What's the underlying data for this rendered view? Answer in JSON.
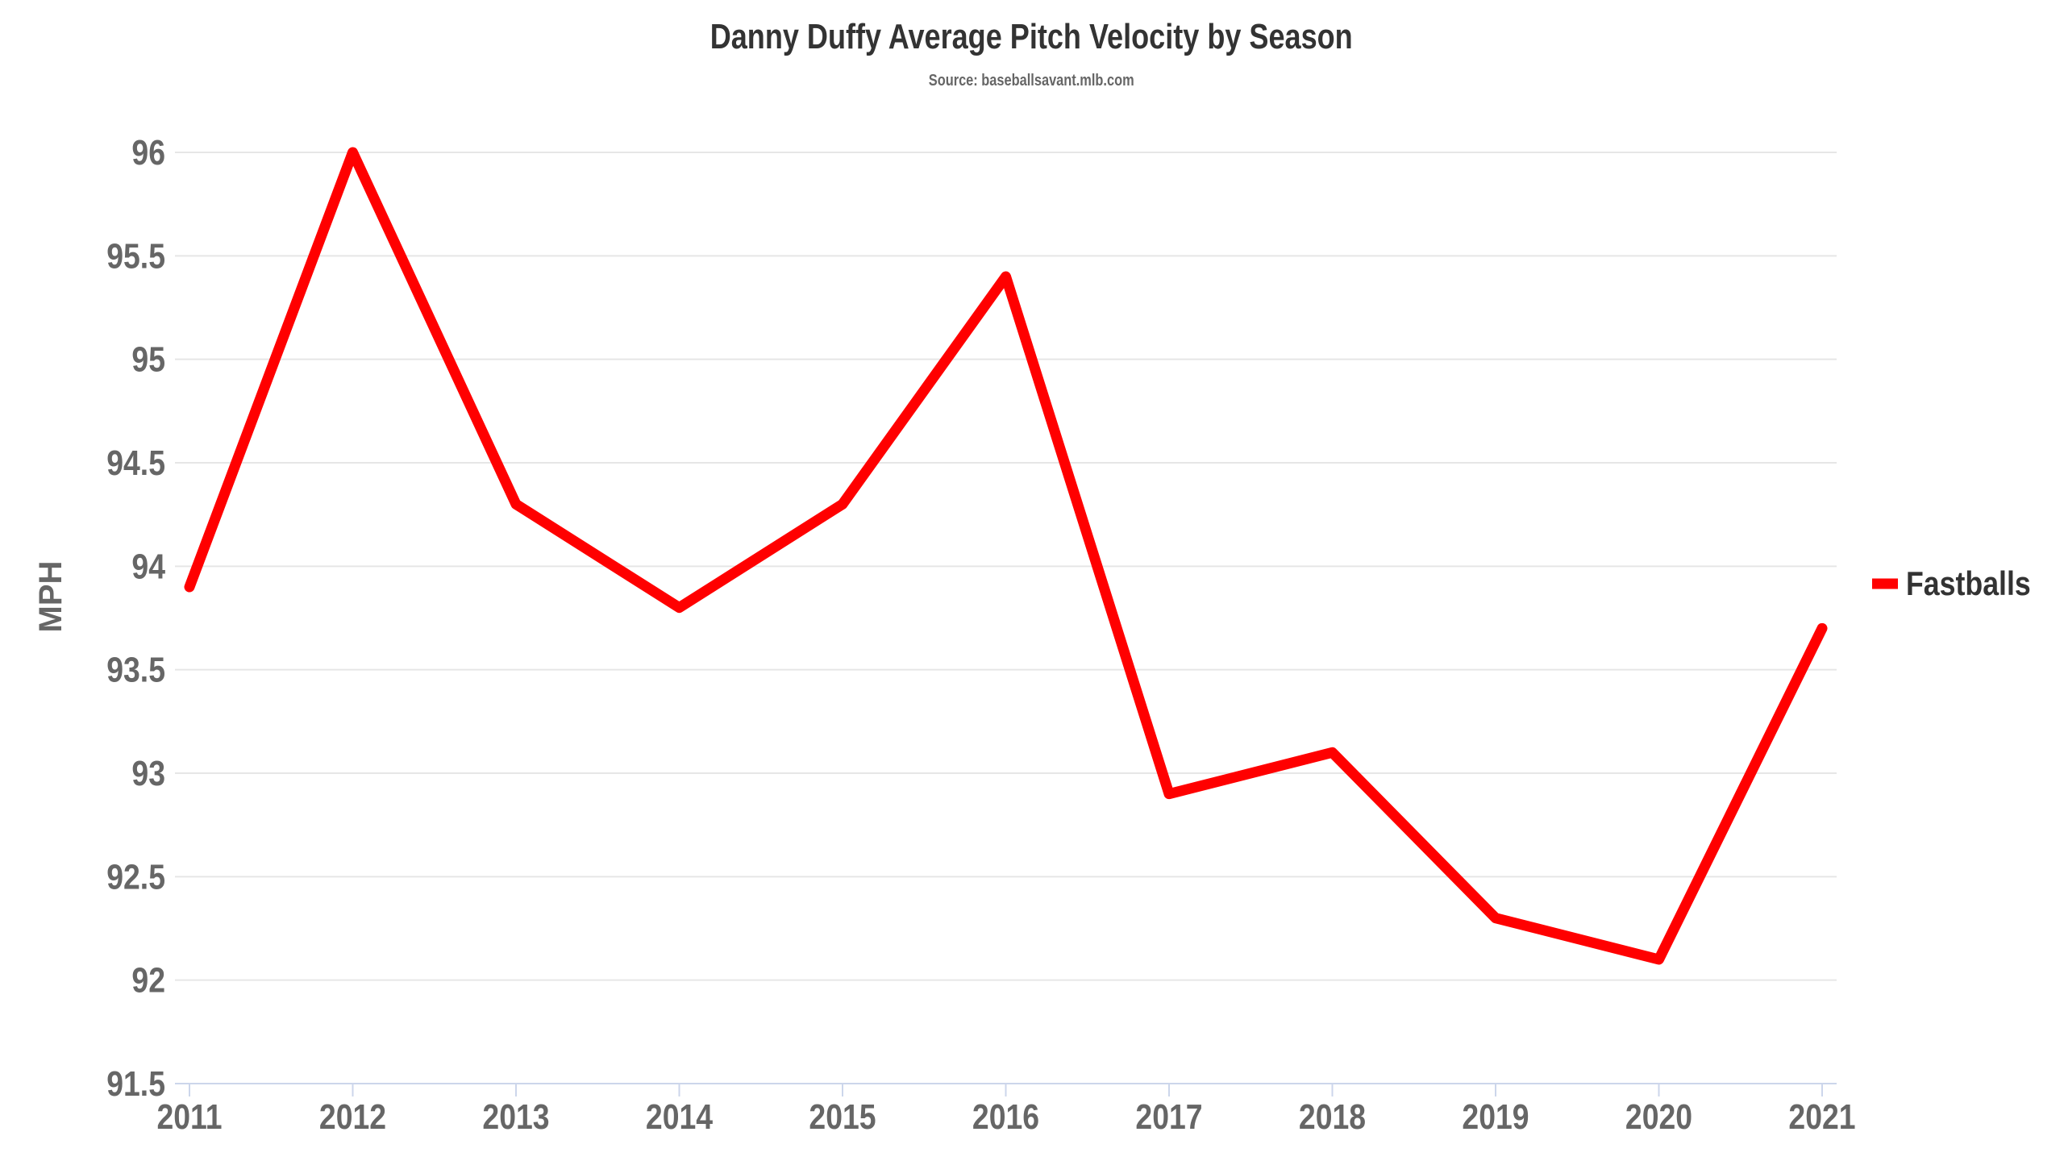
{
  "chart_data": {
    "type": "line",
    "title": "Danny Duffy Average Pitch Velocity by Season",
    "subtitle": "Source: baseballsavant.mlb.com",
    "xlabel": "",
    "ylabel": "MPH",
    "categories": [
      "2011",
      "2012",
      "2013",
      "2014",
      "2015",
      "2016",
      "2017",
      "2018",
      "2019",
      "2020",
      "2021"
    ],
    "series": [
      {
        "name": "Fastballs",
        "color": "#ff0000",
        "values": [
          93.9,
          96.0,
          94.3,
          93.8,
          94.3,
          95.4,
          92.9,
          93.1,
          92.3,
          92.1,
          93.7
        ]
      }
    ],
    "ylim": [
      91.5,
      96
    ],
    "yticks": [
      "91.5",
      "92",
      "92.5",
      "93",
      "93.5",
      "94",
      "94.5",
      "95",
      "95.5",
      "96"
    ],
    "grid": true,
    "legend": "right"
  }
}
